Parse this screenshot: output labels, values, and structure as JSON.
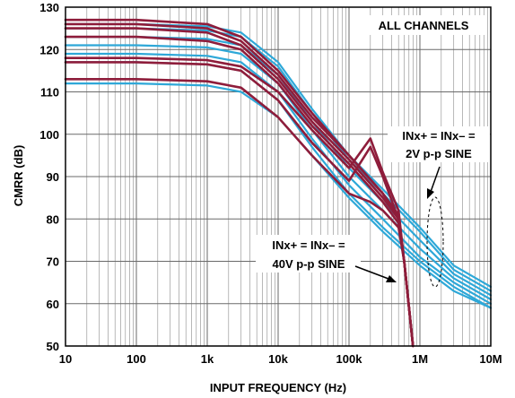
{
  "chart_data": {
    "type": "line",
    "xlabel": "INPUT FREQUENCY (Hz)",
    "ylabel": "CMRR (dB)",
    "xscale": "log",
    "xlim": [
      10,
      10000000
    ],
    "ylim": [
      50,
      130
    ],
    "x_ticks": [
      {
        "value": 10,
        "label": "10"
      },
      {
        "value": 100,
        "label": "100"
      },
      {
        "value": 1000,
        "label": "1k"
      },
      {
        "value": 10000,
        "label": "10k"
      },
      {
        "value": 100000,
        "label": "100k"
      },
      {
        "value": 1000000,
        "label": "1M"
      },
      {
        "value": 10000000,
        "label": "10M"
      }
    ],
    "y_ticks": [
      50,
      60,
      70,
      80,
      90,
      100,
      110,
      120,
      130
    ],
    "grid": true,
    "annotations": [
      {
        "lines": [
          "ALL CHANNELS"
        ],
        "position": "top-right"
      },
      {
        "lines": [
          "INx+ = INx– =",
          "2V p-p SINE"
        ],
        "position": "middle-right"
      },
      {
        "lines": [
          "INx+ = INx– =",
          "40V p-p SINE"
        ],
        "position": "lower-middle"
      }
    ],
    "colors": {
      "2V p-p SINE": "#2ea8d8",
      "40V p-p SINE": "#8e1d3b"
    },
    "series": [
      {
        "group": "2V p-p SINE",
        "points": [
          [
            10,
            126
          ],
          [
            100,
            126
          ],
          [
            1000,
            125.5
          ],
          [
            3000,
            124
          ],
          [
            10000,
            117
          ],
          [
            30000,
            106
          ],
          [
            100000,
            95
          ],
          [
            300000,
            87
          ],
          [
            1000000,
            78
          ],
          [
            3000000,
            69
          ],
          [
            10000000,
            64
          ]
        ]
      },
      {
        "group": "2V p-p SINE",
        "points": [
          [
            10,
            125
          ],
          [
            100,
            125
          ],
          [
            1000,
            124.5
          ],
          [
            3000,
            123
          ],
          [
            10000,
            116
          ],
          [
            30000,
            105
          ],
          [
            100000,
            94
          ],
          [
            300000,
            86
          ],
          [
            1000000,
            77
          ],
          [
            3000000,
            68
          ],
          [
            10000000,
            63
          ]
        ]
      },
      {
        "group": "2V p-p SINE",
        "points": [
          [
            10,
            123
          ],
          [
            100,
            123
          ],
          [
            1000,
            122.5
          ],
          [
            3000,
            121
          ],
          [
            10000,
            114
          ],
          [
            30000,
            103
          ],
          [
            100000,
            92
          ],
          [
            300000,
            84
          ],
          [
            1000000,
            75
          ],
          [
            3000000,
            67
          ],
          [
            10000000,
            62
          ]
        ]
      },
      {
        "group": "2V p-p SINE",
        "points": [
          [
            10,
            121
          ],
          [
            100,
            121
          ],
          [
            1000,
            120.5
          ],
          [
            3000,
            119
          ],
          [
            10000,
            112
          ],
          [
            30000,
            101
          ],
          [
            100000,
            90
          ],
          [
            300000,
            82
          ],
          [
            1000000,
            73
          ],
          [
            3000000,
            66
          ],
          [
            10000000,
            61
          ]
        ]
      },
      {
        "group": "2V p-p SINE",
        "points": [
          [
            10,
            119
          ],
          [
            100,
            119
          ],
          [
            1000,
            118.5
          ],
          [
            3000,
            117
          ],
          [
            10000,
            110
          ],
          [
            30000,
            99
          ],
          [
            100000,
            88
          ],
          [
            300000,
            80
          ],
          [
            1000000,
            71
          ],
          [
            3000000,
            65
          ],
          [
            10000000,
            60
          ]
        ]
      },
      {
        "group": "2V p-p SINE",
        "points": [
          [
            10,
            117
          ],
          [
            100,
            117
          ],
          [
            1000,
            116.5
          ],
          [
            3000,
            115
          ],
          [
            10000,
            108
          ],
          [
            30000,
            97
          ],
          [
            100000,
            86
          ],
          [
            300000,
            78
          ],
          [
            1000000,
            70
          ],
          [
            3000000,
            64
          ],
          [
            10000000,
            59
          ]
        ]
      },
      {
        "group": "2V p-p SINE",
        "points": [
          [
            10,
            112
          ],
          [
            100,
            112
          ],
          [
            1000,
            111.5
          ],
          [
            3000,
            110
          ],
          [
            10000,
            104
          ],
          [
            30000,
            95
          ],
          [
            100000,
            85
          ],
          [
            300000,
            77
          ],
          [
            1000000,
            69
          ],
          [
            3000000,
            63
          ],
          [
            10000000,
            59
          ]
        ]
      },
      {
        "group": "40V p-p SINE",
        "points": [
          [
            10,
            127
          ],
          [
            100,
            127
          ],
          [
            1000,
            126
          ],
          [
            3000,
            123
          ],
          [
            10000,
            115
          ],
          [
            30000,
            105
          ],
          [
            100000,
            95
          ],
          [
            300000,
            86
          ],
          [
            500000,
            81
          ],
          [
            600000,
            70
          ],
          [
            800000,
            50
          ]
        ]
      },
      {
        "group": "40V p-p SINE",
        "points": [
          [
            10,
            126
          ],
          [
            100,
            126
          ],
          [
            1000,
            125
          ],
          [
            3000,
            122
          ],
          [
            10000,
            114
          ],
          [
            30000,
            104
          ],
          [
            100000,
            95
          ],
          [
            300000,
            86
          ],
          [
            500000,
            80
          ],
          [
            600000,
            70
          ],
          [
            800000,
            50
          ]
        ]
      },
      {
        "group": "40V p-p SINE",
        "points": [
          [
            10,
            125
          ],
          [
            100,
            125
          ],
          [
            1000,
            124
          ],
          [
            3000,
            121
          ],
          [
            10000,
            113
          ],
          [
            30000,
            103
          ],
          [
            100000,
            94
          ],
          [
            300000,
            85
          ],
          [
            500000,
            80
          ],
          [
            600000,
            70
          ],
          [
            800000,
            50
          ]
        ]
      },
      {
        "group": "40V p-p SINE",
        "points": [
          [
            10,
            123
          ],
          [
            100,
            123
          ],
          [
            1000,
            122
          ],
          [
            3000,
            120
          ],
          [
            10000,
            112
          ],
          [
            30000,
            102
          ],
          [
            100000,
            93
          ],
          [
            300000,
            84
          ],
          [
            500000,
            79
          ],
          [
            600000,
            70
          ],
          [
            800000,
            50
          ]
        ]
      },
      {
        "group": "40V p-p SINE",
        "points": [
          [
            10,
            118
          ],
          [
            100,
            118
          ],
          [
            1000,
            117.5
          ],
          [
            3000,
            116
          ],
          [
            10000,
            110
          ],
          [
            30000,
            101
          ],
          [
            100000,
            92
          ],
          [
            200000,
            99
          ],
          [
            300000,
            91
          ],
          [
            500000,
            82
          ],
          [
            600000,
            70
          ],
          [
            800000,
            50
          ]
        ]
      },
      {
        "group": "40V p-p SINE",
        "points": [
          [
            10,
            117
          ],
          [
            100,
            117
          ],
          [
            1000,
            116.5
          ],
          [
            3000,
            115
          ],
          [
            10000,
            108
          ],
          [
            30000,
            98
          ],
          [
            100000,
            89
          ],
          [
            200000,
            97
          ],
          [
            300000,
            90
          ],
          [
            500000,
            80
          ],
          [
            600000,
            70
          ],
          [
            800000,
            50
          ]
        ]
      },
      {
        "group": "40V p-p SINE",
        "points": [
          [
            10,
            113
          ],
          [
            100,
            113
          ],
          [
            1000,
            112.5
          ],
          [
            3000,
            111
          ],
          [
            10000,
            104
          ],
          [
            30000,
            95
          ],
          [
            100000,
            86
          ],
          [
            200000,
            84
          ],
          [
            300000,
            82
          ],
          [
            500000,
            78
          ],
          [
            600000,
            70
          ],
          [
            800000,
            50
          ]
        ]
      }
    ]
  }
}
